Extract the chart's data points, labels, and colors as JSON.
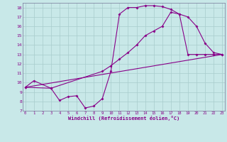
{
  "xlabel": "Windchill (Refroidissement éolien,°C)",
  "bg_color": "#c8e8e8",
  "grid_color": "#a8cccc",
  "line_color": "#880088",
  "line1_x": [
    0,
    1,
    3,
    4,
    5,
    6,
    7,
    8,
    9,
    10,
    11,
    12,
    13,
    14,
    15,
    16,
    17,
    18,
    19,
    20,
    21,
    22,
    23
  ],
  "line1_y": [
    9.5,
    10.2,
    9.4,
    8.1,
    8.5,
    8.6,
    7.3,
    7.5,
    8.3,
    11.2,
    17.3,
    18.0,
    18.0,
    18.2,
    18.2,
    18.1,
    17.8,
    17.3,
    13.0,
    13.0,
    13.0,
    13.0,
    13.0
  ],
  "line2_x": [
    0,
    3,
    9,
    10,
    11,
    12,
    13,
    14,
    15,
    16,
    17,
    18,
    19,
    20,
    21,
    22,
    23
  ],
  "line2_y": [
    9.5,
    9.4,
    11.2,
    11.8,
    12.5,
    13.2,
    14.0,
    15.0,
    15.5,
    16.0,
    17.5,
    17.3,
    17.0,
    16.0,
    14.2,
    13.2,
    13.0
  ],
  "line3_x": [
    0,
    23
  ],
  "line3_y": [
    9.5,
    13.0
  ],
  "xlim": [
    -0.3,
    23.3
  ],
  "ylim": [
    7,
    18.5
  ],
  "yticks": [
    7,
    8,
    9,
    10,
    11,
    12,
    13,
    14,
    15,
    16,
    17,
    18
  ],
  "xticks": [
    0,
    1,
    2,
    3,
    4,
    5,
    6,
    7,
    8,
    9,
    10,
    11,
    12,
    13,
    14,
    15,
    16,
    17,
    18,
    19,
    20,
    21,
    22,
    23
  ]
}
